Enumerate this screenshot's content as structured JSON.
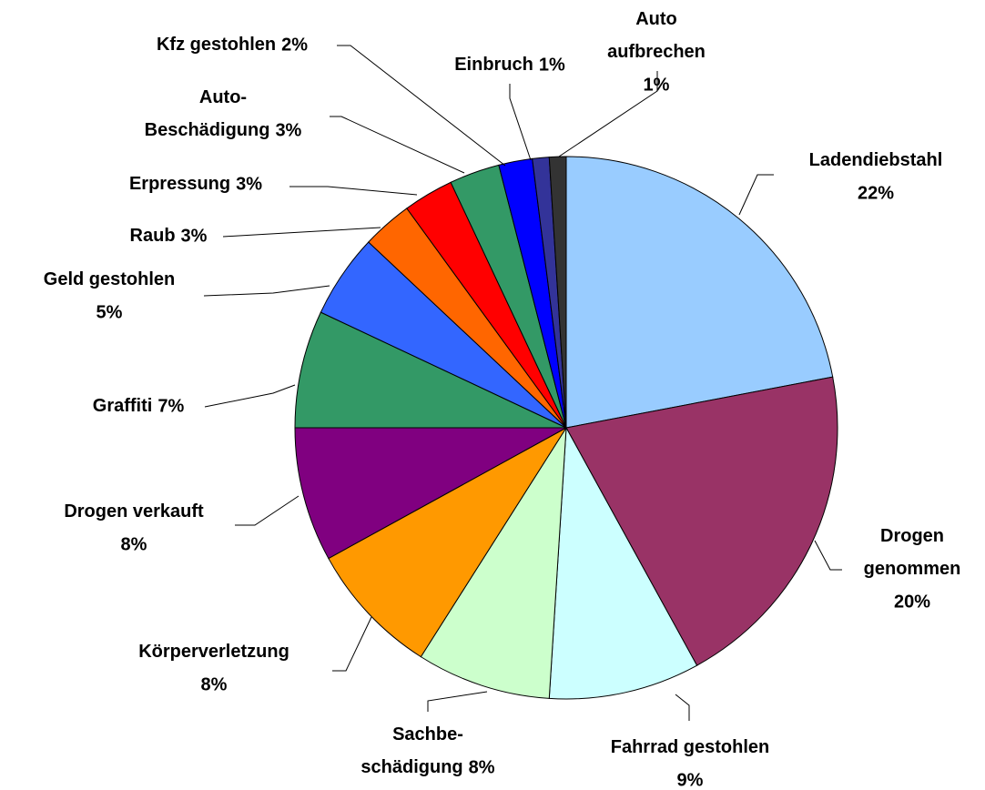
{
  "chart_data": {
    "type": "pie",
    "categories": [
      "Ladendiebstahl",
      "Drogen genommen",
      "Fahrrad gestohlen",
      "Sachbe-schädigung",
      "Körperverletzung",
      "Drogen verkauft",
      "Graffiti",
      "Geld gestohlen",
      "Raub",
      "Erpressung",
      "Auto-Beschädigung",
      "Kfz gestohlen",
      "Einbruch",
      "Auto aufbrechen"
    ],
    "values": [
      22,
      20,
      9,
      8,
      8,
      8,
      7,
      5,
      3,
      3,
      3,
      2,
      1,
      1
    ],
    "value_labels": [
      "22%",
      "20%",
      "9%",
      "8%",
      "8%",
      "8%",
      "7%",
      "5%",
      "3%",
      "3%",
      "3%",
      "2%",
      "1%",
      "1%"
    ],
    "colors": [
      "#99ccff",
      "#993366",
      "#ccffff",
      "#ccffcc",
      "#ff9900",
      "#800080",
      "#339966",
      "#3366ff",
      "#ff6600",
      "#ff0000",
      "#339966",
      "#0000ff",
      "#333399",
      "#333333"
    ]
  }
}
